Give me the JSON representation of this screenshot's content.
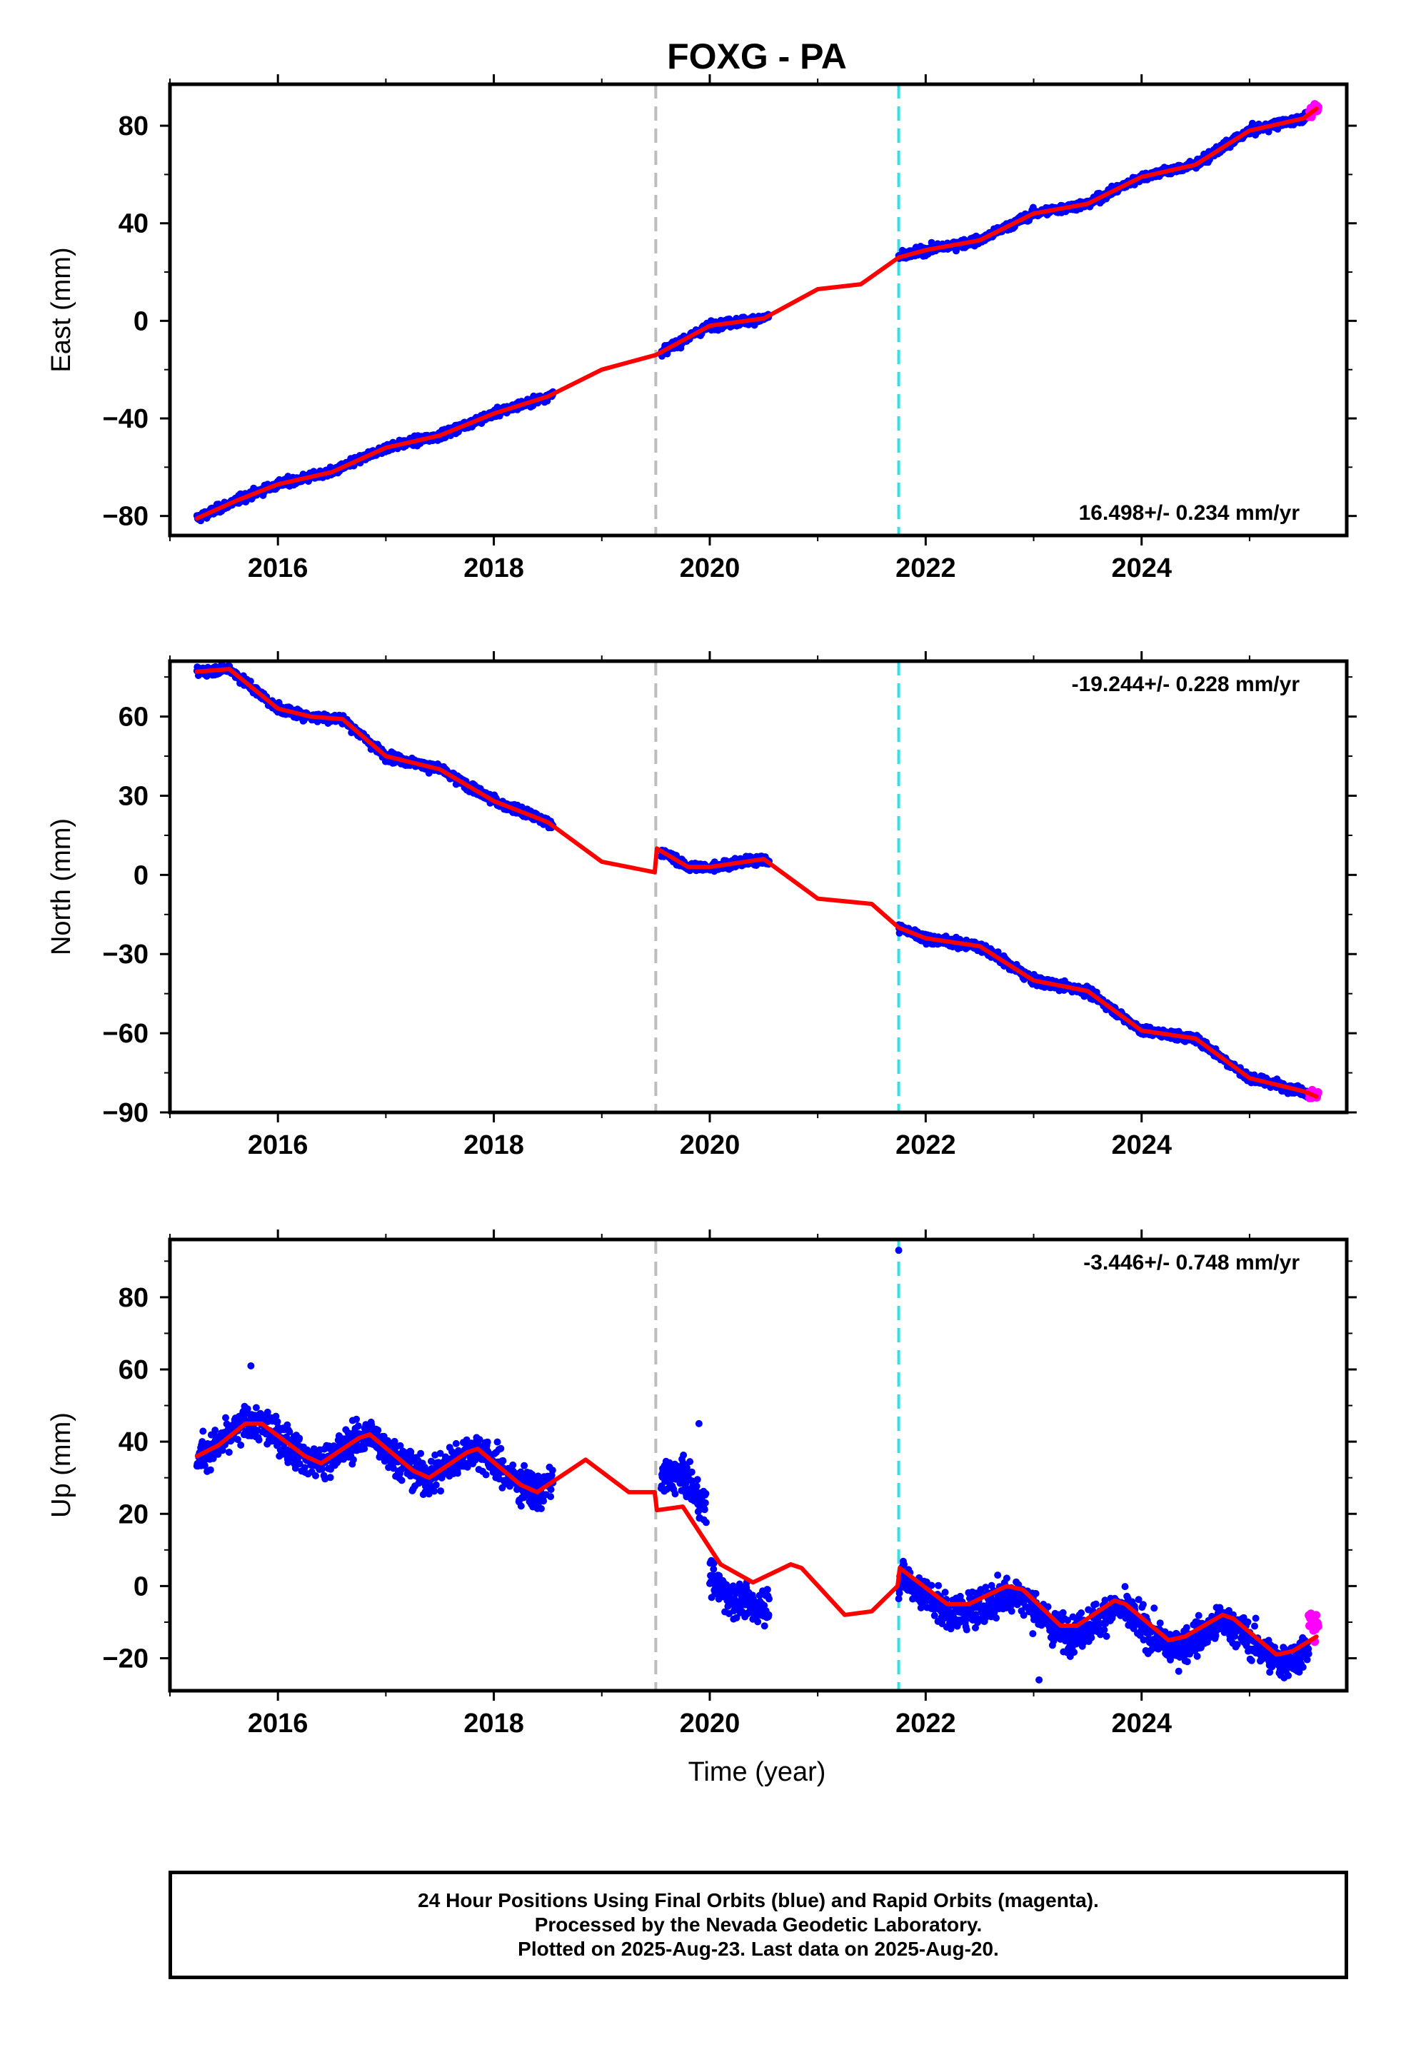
{
  "title": "FOXG - PA",
  "xlabel": "Time (year)",
  "footer": [
    "24 Hour Positions Using Final Orbits (blue) and Rapid Orbits (magenta).",
    "Processed by the Nevada Geodetic Laboratory.",
    "Plotted on 2025-Aug-23. Last data on 2025-Aug-20."
  ],
  "colors": {
    "final": "#0000ff",
    "rapid": "#ff00ff",
    "model": "#ff0000",
    "equipment_change": "#bdbdbd",
    "other_event": "#33e0e6"
  },
  "event_lines": [
    {
      "year": 2019.5,
      "kind": "equipment_change"
    },
    {
      "year": 2021.75,
      "kind": "other_event"
    }
  ],
  "chart_data": [
    {
      "type": "scatter",
      "component": "east",
      "ylabel": "East (mm)",
      "rate_label": "16.498+/- 0.234 mm/yr",
      "rate_corner": "bottom-right",
      "xlim": [
        2015.0,
        2025.9
      ],
      "ylim": [
        -88,
        97
      ],
      "xticks": [
        2016,
        2018,
        2020,
        2022,
        2024
      ],
      "yticks": [
        -80,
        -40,
        0,
        40,
        80
      ],
      "final_segments": [
        [
          2015.25,
          2018.55
        ],
        [
          2019.55,
          2020.55
        ],
        [
          2021.75,
          2025.55
        ]
      ],
      "rapid_range": [
        2025.55,
        2025.64
      ],
      "noise_mm": 1.6,
      "outliers": [],
      "model": [
        [
          2015.25,
          -81
        ],
        [
          2015.6,
          -74
        ],
        [
          2016.0,
          -67
        ],
        [
          2016.5,
          -62
        ],
        [
          2017.0,
          -52
        ],
        [
          2017.5,
          -47
        ],
        [
          2018.0,
          -38
        ],
        [
          2018.5,
          -31
        ],
        [
          2019.0,
          -20
        ],
        [
          2019.25,
          -17
        ],
        [
          2019.5,
          -14
        ],
        [
          2020.0,
          -2
        ],
        [
          2020.5,
          1
        ],
        [
          2021.0,
          13
        ],
        [
          2021.4,
          15
        ],
        [
          2021.75,
          26
        ],
        [
          2022.0,
          29
        ],
        [
          2022.5,
          33
        ],
        [
          2023.0,
          44
        ],
        [
          2023.5,
          48
        ],
        [
          2024.0,
          59
        ],
        [
          2024.5,
          64
        ],
        [
          2025.0,
          78
        ],
        [
          2025.5,
          83
        ],
        [
          2025.62,
          87
        ]
      ]
    },
    {
      "type": "scatter",
      "component": "north",
      "ylabel": "North (mm)",
      "rate_label": "-19.244+/- 0.228 mm/yr",
      "rate_corner": "top-right",
      "xlim": [
        2015.0,
        2025.9
      ],
      "ylim": [
        -90,
        81
      ],
      "xticks": [
        2016,
        2018,
        2020,
        2022,
        2024
      ],
      "yticks": [
        -90,
        -60,
        -30,
        0,
        30,
        60
      ],
      "final_segments": [
        [
          2015.25,
          2018.55
        ],
        [
          2019.55,
          2019.97
        ],
        [
          2020.0,
          2020.55
        ],
        [
          2021.75,
          2025.55
        ]
      ],
      "rapid_range": [
        2025.55,
        2025.64
      ],
      "noise_mm": 1.6,
      "outliers": [],
      "model": [
        [
          2015.25,
          77
        ],
        [
          2015.55,
          78
        ],
        [
          2016.0,
          63
        ],
        [
          2016.3,
          60
        ],
        [
          2016.6,
          59
        ],
        [
          2017.0,
          45
        ],
        [
          2017.5,
          40
        ],
        [
          2018.0,
          28
        ],
        [
          2018.5,
          20
        ],
        [
          2019.0,
          5
        ],
        [
          2019.49,
          1
        ],
        [
          2019.51,
          10
        ],
        [
          2019.8,
          3
        ],
        [
          2020.0,
          3
        ],
        [
          2020.5,
          6
        ],
        [
          2021.0,
          -9
        ],
        [
          2021.5,
          -11
        ],
        [
          2021.75,
          -20
        ],
        [
          2022.0,
          -24
        ],
        [
          2022.5,
          -27
        ],
        [
          2023.0,
          -40
        ],
        [
          2023.5,
          -44
        ],
        [
          2024.0,
          -59
        ],
        [
          2024.5,
          -62
        ],
        [
          2025.0,
          -77
        ],
        [
          2025.5,
          -82
        ],
        [
          2025.62,
          -84
        ]
      ]
    },
    {
      "type": "scatter",
      "component": "up",
      "ylabel": "Up (mm)",
      "rate_label": "-3.446+/- 0.748 mm/yr",
      "rate_corner": "top-right",
      "xlim": [
        2015.0,
        2025.9
      ],
      "ylim": [
        -29,
        96
      ],
      "xticks": [
        2016,
        2018,
        2020,
        2022,
        2024
      ],
      "yticks": [
        -20,
        0,
        20,
        40,
        60,
        80
      ],
      "final_segments": [
        [
          2015.25,
          2018.55
        ],
        [
          2019.55,
          2019.97
        ],
        [
          2020.0,
          2020.55
        ],
        [
          2021.75,
          2025.55
        ]
      ],
      "rapid_range": [
        2025.55,
        2025.64
      ],
      "noise_mm": 4.5,
      "segment_offsets": [
        0,
        9,
        -7,
        -2
      ],
      "outliers": [
        [
          2021.75,
          93
        ],
        [
          2023.05,
          -26
        ],
        [
          2019.9,
          45
        ],
        [
          2015.75,
          61
        ]
      ],
      "model": [
        [
          2015.25,
          36
        ],
        [
          2015.45,
          39
        ],
        [
          2015.7,
          45
        ],
        [
          2015.85,
          45
        ],
        [
          2016.25,
          36
        ],
        [
          2016.4,
          34
        ],
        [
          2016.75,
          41
        ],
        [
          2016.85,
          42
        ],
        [
          2017.25,
          32
        ],
        [
          2017.4,
          30
        ],
        [
          2017.75,
          37
        ],
        [
          2017.85,
          38
        ],
        [
          2018.25,
          28
        ],
        [
          2018.4,
          26
        ],
        [
          2018.75,
          33
        ],
        [
          2018.85,
          35
        ],
        [
          2019.25,
          26
        ],
        [
          2019.49,
          26
        ],
        [
          2019.51,
          21
        ],
        [
          2019.75,
          22
        ],
        [
          2020.1,
          6
        ],
        [
          2020.4,
          1
        ],
        [
          2020.75,
          6
        ],
        [
          2020.85,
          5
        ],
        [
          2021.25,
          -8
        ],
        [
          2021.5,
          -7
        ],
        [
          2021.74,
          0
        ],
        [
          2021.76,
          5
        ],
        [
          2022.2,
          -5
        ],
        [
          2022.4,
          -5
        ],
        [
          2022.75,
          0
        ],
        [
          2022.9,
          -1
        ],
        [
          2023.25,
          -11
        ],
        [
          2023.4,
          -11
        ],
        [
          2023.75,
          -4
        ],
        [
          2023.85,
          -5
        ],
        [
          2024.25,
          -15
        ],
        [
          2024.4,
          -14
        ],
        [
          2024.75,
          -8
        ],
        [
          2024.85,
          -9
        ],
        [
          2025.25,
          -19
        ],
        [
          2025.4,
          -18
        ],
        [
          2025.62,
          -14
        ]
      ]
    }
  ]
}
